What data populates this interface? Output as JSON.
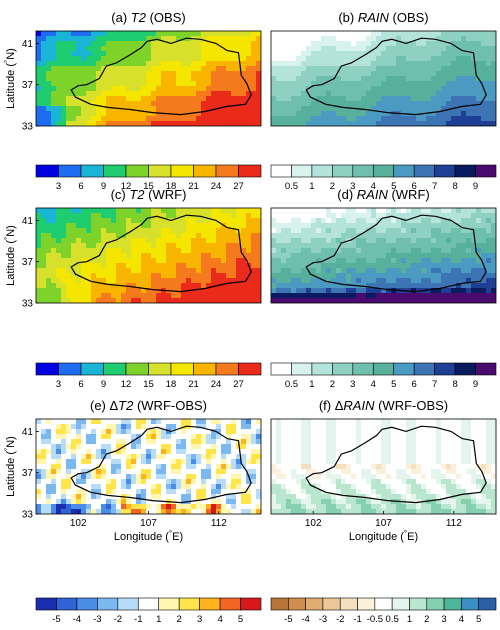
{
  "panels": [
    {
      "id": "a",
      "title_prefix": "(a) ",
      "title_var": "T2",
      "title_suffix": " (OBS)",
      "field": "t2_obs"
    },
    {
      "id": "b",
      "title_prefix": "(b) ",
      "title_var": "RAIN",
      "title_suffix": " (OBS)",
      "field": "rain_obs"
    },
    {
      "id": "c",
      "title_prefix": "(c) ",
      "title_var": "T2",
      "title_suffix": " (WRF)",
      "field": "t2_wrf"
    },
    {
      "id": "d",
      "title_prefix": "(d) ",
      "title_var": "RAIN",
      "title_suffix": " (WRF)",
      "field": "rain_wrf"
    },
    {
      "id": "e",
      "title_prefix": "(e) ",
      "title_delta": "Δ",
      "title_var": "T2",
      "title_suffix": " (WRF-OBS)",
      "field": "dt2"
    },
    {
      "id": "f",
      "title_prefix": "(f) ",
      "title_delta": "Δ",
      "title_var": "RAIN",
      "title_suffix": " (WRF-OBS)",
      "field": "drain"
    }
  ],
  "axes": {
    "ylabel_main": "Latitude (",
    "ylabel_deg": "°",
    "ylabel_end": "N)",
    "xlabel_main": "Longitude (",
    "xlabel_deg": "°",
    "xlabel_end": "E)",
    "lat_ticks": [
      "41",
      "37",
      "33"
    ],
    "lon_ticks": [
      "102",
      "107",
      "112"
    ]
  },
  "colorbars": {
    "t2": {
      "labels": [
        "3",
        "6",
        "9",
        "12",
        "15",
        "18",
        "21",
        "24",
        "27"
      ],
      "colors": [
        "#0000e0",
        "#1e6cf0",
        "#19b4d6",
        "#1fcc70",
        "#7ed32a",
        "#d7e02a",
        "#f5e600",
        "#f7b500",
        "#f57a1e",
        "#ea2a1a"
      ]
    },
    "rain": {
      "labels": [
        "0.5",
        "1",
        "2",
        "3",
        "4",
        "5",
        "6",
        "7",
        "8",
        "9"
      ],
      "colors": [
        "#ffffff",
        "#d8f2ee",
        "#b3e3da",
        "#8ed0c2",
        "#6fbfae",
        "#56b09c",
        "#4a9ac2",
        "#3d74b4",
        "#1f3f94",
        "#0a1a5e",
        "#4a0b6e"
      ]
    },
    "dt2": {
      "labels": [
        "-5",
        "-4",
        "-3",
        "-2",
        "-1",
        "1",
        "2",
        "3",
        "4",
        "5"
      ],
      "colors": [
        "#1a2fb0",
        "#2f63d6",
        "#4a8de6",
        "#7cb8f0",
        "#b6dcf7",
        "#ffffff",
        "#fff7b0",
        "#ffe44a",
        "#ffb21e",
        "#f26522",
        "#d7191c"
      ]
    },
    "drain": {
      "labels": [
        "-5",
        "-4",
        "-3",
        "-2",
        "-1",
        "-0.5",
        "0.5",
        "1",
        "2",
        "3",
        "4",
        "5"
      ],
      "colors": [
        "#b9743a",
        "#cf8e4e",
        "#e0ad72",
        "#ecc79a",
        "#f5dfbf",
        "#faf0dc",
        "#ffffff",
        "#e3f5ec",
        "#b8e6cf",
        "#85d0b0",
        "#4fb59a",
        "#3a8fc2",
        "#2d5ea8"
      ]
    }
  }
}
